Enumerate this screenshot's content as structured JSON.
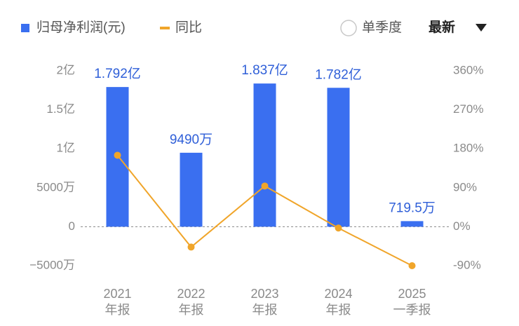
{
  "chart_data": {
    "type": "bar_line",
    "categories": [
      "2021",
      "2022",
      "2023",
      "2024",
      "2025"
    ],
    "category_sublabels": [
      "年报",
      "年报",
      "年报",
      "年报",
      "一季报"
    ],
    "series": [
      {
        "name": "归母净利润(元)",
        "type": "bar",
        "color": "#3a6ff0",
        "values": [
          179200000,
          94900000,
          183700000,
          178200000,
          7195000
        ],
        "value_labels": [
          "1.792亿",
          "9490万",
          "1.837亿",
          "1.782亿",
          "719.5万"
        ]
      },
      {
        "name": "同比",
        "type": "line",
        "axis": "y2",
        "color": "#f0a52a",
        "values": [
          165,
          -47,
          94,
          -3,
          -90
        ]
      }
    ],
    "ylim": [
      -50000000,
      200000000
    ],
    "yticks": [
      {
        "value": -50000000,
        "label": "−5000万"
      },
      0,
      {
        "value": 50000000,
        "label": "5000万"
      },
      {
        "value": 100000000,
        "label": "1亿"
      },
      {
        "value": 150000000,
        "label": "1.5亿"
      },
      {
        "value": 200000000,
        "label": "2亿"
      }
    ],
    "y2lim": [
      -90,
      360
    ],
    "y2ticks": [
      {
        "value": -90,
        "label": "-90%"
      },
      {
        "value": 0,
        "label": "0%"
      },
      {
        "value": 90,
        "label": "90%"
      },
      {
        "value": 180,
        "label": "180%"
      },
      {
        "value": 270,
        "label": "270%"
      },
      {
        "value": 360,
        "label": "360%"
      }
    ],
    "grid": false,
    "controls": {
      "single_quarter": "单季度",
      "sort": "最新"
    }
  }
}
